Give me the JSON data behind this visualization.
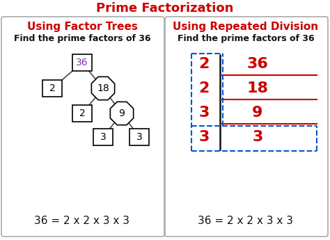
{
  "title": "Prime Factorization",
  "title_color": "#cc0000",
  "title_fontsize": 13,
  "bg_color": "#ffffff",
  "left_title": "Using Factor Trees",
  "right_title": "Using Repeated Division",
  "subtitle_color": "#cc0000",
  "subtitle_fontsize": 11,
  "find_text": "Find the prime factors of 36",
  "find_fontsize": 9,
  "equation_text": "36 = 2 x 2 x 3 x 3",
  "equation_fontsize": 11,
  "red": "#cc0000",
  "blue_dash": "#0055cc",
  "purple": "#8833aa",
  "black": "#111111",
  "gray": "#888888"
}
